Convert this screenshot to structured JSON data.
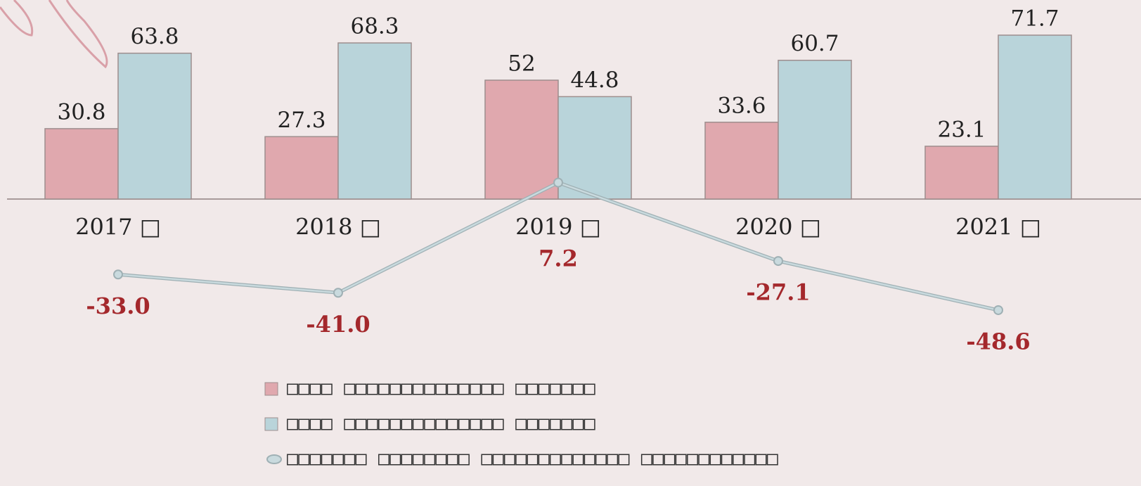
{
  "chart_data": {
    "type": "bar-line",
    "categories": [
      "2017 □",
      "2018 □",
      "2019 □",
      "2020 □",
      "2021 □"
    ],
    "series": [
      {
        "name": "□□□□ □□□□□□□□□□□□□□ □□□□□□□",
        "type": "bar",
        "color": "#e0a8ae",
        "values": [
          30.8,
          27.3,
          52,
          33.6,
          23.1
        ]
      },
      {
        "name": "□□□□ □□□□□□□□□□□□□□ □□□□□□□",
        "type": "bar",
        "color": "#b9d4da",
        "values": [
          63.8,
          68.3,
          44.8,
          60.7,
          71.7
        ]
      },
      {
        "name": "□□□□□□□ □□□□□□□□ □□□□□□□□□□□□□ □□□□□□□□□□□□",
        "type": "line",
        "color": "#c9dade",
        "values": [
          -33.0,
          -41.0,
          7.2,
          -27.1,
          -48.6
        ],
        "value_labels": [
          "-33.0",
          "-41.0",
          "7.2",
          "-27.1",
          "-48.6"
        ]
      }
    ],
    "ylim": [
      -60,
      80
    ]
  }
}
